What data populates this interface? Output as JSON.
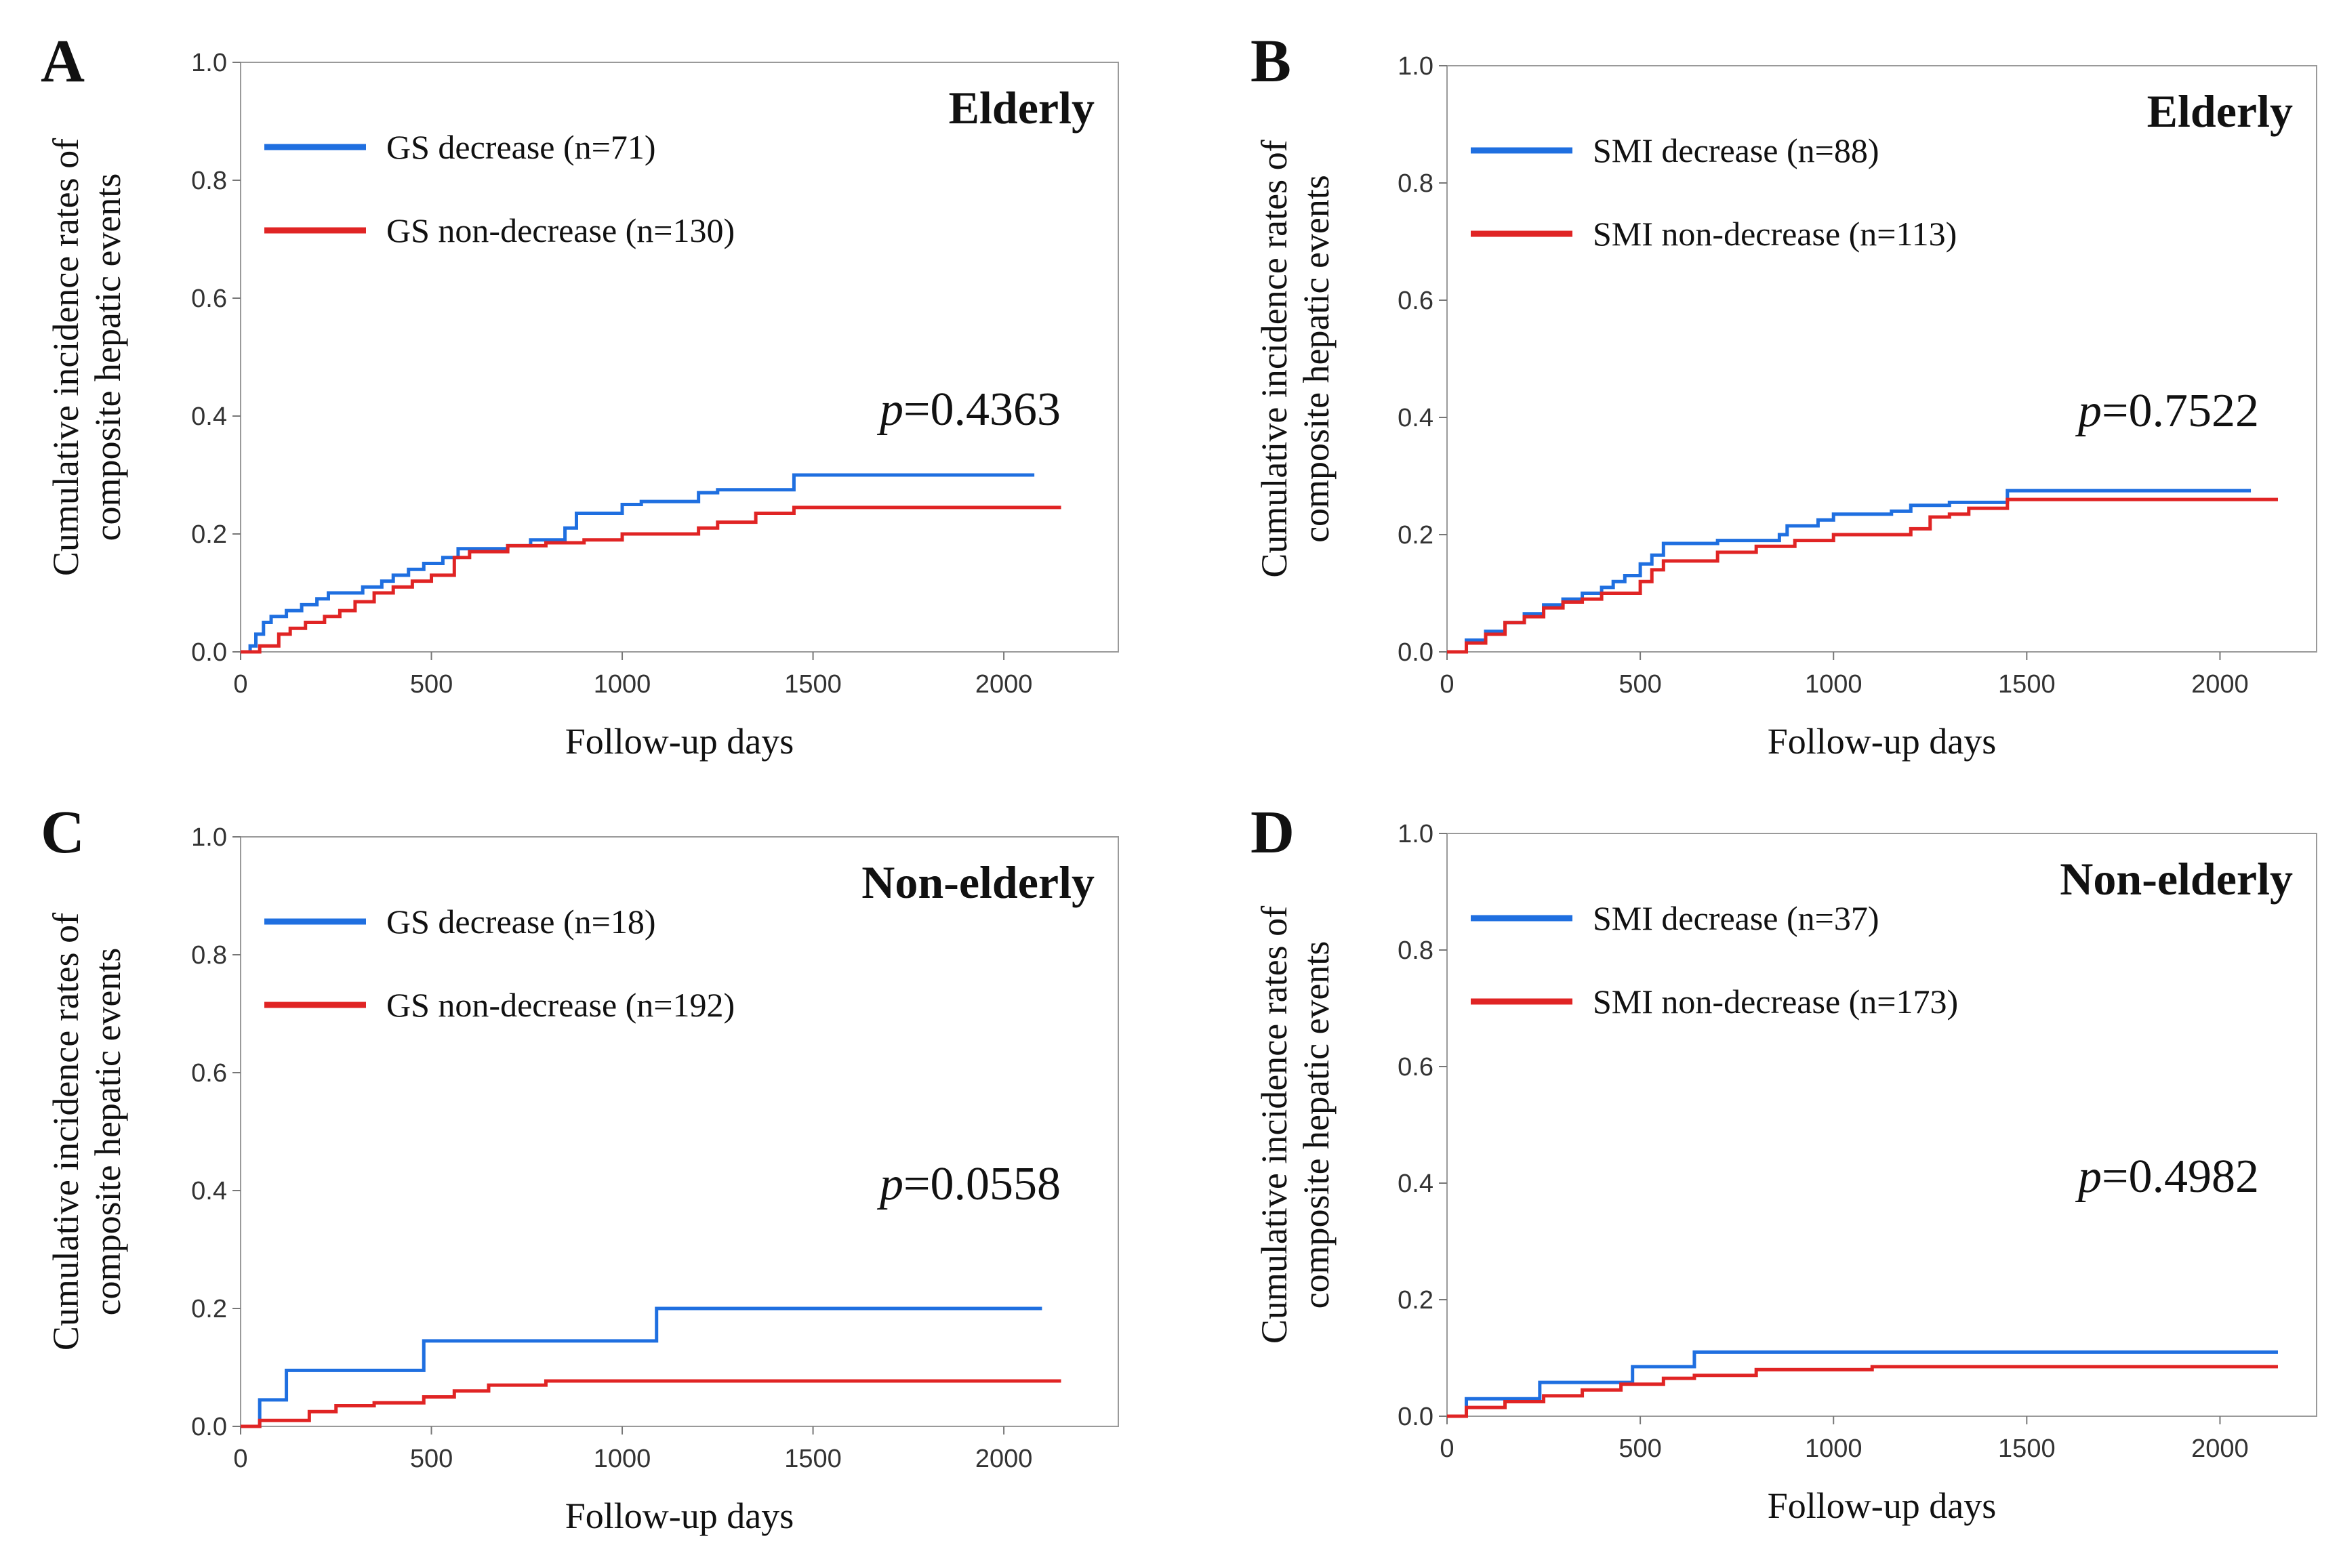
{
  "chart_data": [
    {
      "type": "line",
      "step": true,
      "panel": "A",
      "group": "Elderly",
      "xlabel": "Follow-up days",
      "ylabel": "Cumulative incidence rates of composite hepatic events",
      "ylabel_lines": [
        "Cumulative incidence rates of",
        "composite hepatic events"
      ],
      "xlim": [
        0,
        2300
      ],
      "ylim": [
        0,
        1
      ],
      "xticks": [
        "0",
        "500",
        "1000",
        "1500",
        "2000"
      ],
      "yticks": [
        "0.0",
        "0.2",
        "0.4",
        "0.6",
        "0.8",
        "1.0"
      ],
      "p_prefix": "p",
      "p_value": "=0.4363",
      "legend_position": "top-left",
      "series": [
        {
          "name": "GS decrease (n=71)",
          "color": "#1f6fe0",
          "x": [
            0,
            25,
            40,
            60,
            80,
            120,
            160,
            200,
            230,
            320,
            370,
            400,
            440,
            480,
            530,
            570,
            700,
            760,
            850,
            880,
            1000,
            1050,
            1200,
            1250,
            1450,
            2080
          ],
          "y": [
            0,
            0.01,
            0.03,
            0.05,
            0.06,
            0.07,
            0.08,
            0.09,
            0.1,
            0.11,
            0.12,
            0.13,
            0.14,
            0.15,
            0.16,
            0.175,
            0.18,
            0.19,
            0.21,
            0.235,
            0.25,
            0.255,
            0.27,
            0.275,
            0.3,
            0.3
          ]
        },
        {
          "name": "GS non-decrease (n=130)",
          "color": "#e02424",
          "x": [
            0,
            50,
            100,
            130,
            170,
            220,
            260,
            300,
            350,
            400,
            450,
            500,
            560,
            600,
            700,
            800,
            900,
            1000,
            1200,
            1250,
            1350,
            1450,
            2150
          ],
          "y": [
            0,
            0.01,
            0.03,
            0.04,
            0.05,
            0.06,
            0.07,
            0.085,
            0.1,
            0.11,
            0.12,
            0.13,
            0.16,
            0.17,
            0.18,
            0.185,
            0.19,
            0.2,
            0.21,
            0.22,
            0.235,
            0.245,
            0.245
          ]
        }
      ]
    },
    {
      "type": "line",
      "step": true,
      "panel": "B",
      "group": "Elderly",
      "xlabel": "Follow-up days",
      "ylabel": "Cumulative incidence rates of composite hepatic events",
      "ylabel_lines": [
        "Cumulative incidence rates of",
        "composite hepatic events"
      ],
      "xlim": [
        0,
        2250
      ],
      "ylim": [
        0,
        1
      ],
      "xticks": [
        "0",
        "500",
        "1000",
        "1500",
        "2000"
      ],
      "yticks": [
        "0.0",
        "0.2",
        "0.4",
        "0.6",
        "0.8",
        "1.0"
      ],
      "p_prefix": "p",
      "p_value": "=0.7522",
      "legend_position": "top-left",
      "series": [
        {
          "name": "SMI decrease (n=88)",
          "color": "#1f6fe0",
          "x": [
            0,
            50,
            100,
            150,
            200,
            250,
            300,
            350,
            400,
            430,
            460,
            500,
            530,
            560,
            700,
            860,
            880,
            960,
            1000,
            1150,
            1200,
            1300,
            1450,
            2080
          ],
          "y": [
            0,
            0.02,
            0.035,
            0.05,
            0.065,
            0.08,
            0.09,
            0.1,
            0.11,
            0.12,
            0.13,
            0.15,
            0.165,
            0.185,
            0.19,
            0.2,
            0.215,
            0.225,
            0.235,
            0.24,
            0.25,
            0.255,
            0.275,
            0.275
          ]
        },
        {
          "name": "SMI non-decrease (n=113)",
          "color": "#e02424",
          "x": [
            0,
            50,
            100,
            150,
            200,
            250,
            300,
            350,
            400,
            450,
            500,
            530,
            560,
            700,
            800,
            900,
            1000,
            1200,
            1250,
            1300,
            1350,
            1450,
            2150
          ],
          "y": [
            0,
            0.015,
            0.03,
            0.05,
            0.06,
            0.075,
            0.085,
            0.09,
            0.1,
            0.1,
            0.12,
            0.14,
            0.155,
            0.17,
            0.18,
            0.19,
            0.2,
            0.21,
            0.23,
            0.235,
            0.245,
            0.26,
            0.26
          ]
        }
      ]
    },
    {
      "type": "line",
      "step": true,
      "panel": "C",
      "group": "Non-elderly",
      "xlabel": "Follow-up days",
      "ylabel": "Cumulative incidence rates of composite hepatic events",
      "ylabel_lines": [
        "Cumulative incidence rates of",
        "composite hepatic events"
      ],
      "xlim": [
        0,
        2300
      ],
      "ylim": [
        0,
        1
      ],
      "xticks": [
        "0",
        "500",
        "1000",
        "1500",
        "2000"
      ],
      "yticks": [
        "0.0",
        "0.2",
        "0.4",
        "0.6",
        "0.8",
        "1.0"
      ],
      "p_prefix": "p",
      "p_value": "=0.0558",
      "legend_position": "top-left",
      "series": [
        {
          "name": "GS decrease (n=18)",
          "color": "#1f6fe0",
          "x": [
            0,
            50,
            120,
            480,
            1090,
            2100
          ],
          "y": [
            0,
            0.045,
            0.095,
            0.145,
            0.2,
            0.2
          ]
        },
        {
          "name": "GS non-decrease (n=192)",
          "color": "#e02424",
          "x": [
            0,
            50,
            180,
            250,
            350,
            480,
            560,
            650,
            800,
            2150
          ],
          "y": [
            0,
            0.01,
            0.025,
            0.035,
            0.04,
            0.05,
            0.06,
            0.07,
            0.077,
            0.077
          ]
        }
      ]
    },
    {
      "type": "line",
      "step": true,
      "panel": "D",
      "group": "Non-elderly",
      "xlabel": "Follow-up days",
      "ylabel": "Cumulative incidence rates of composite hepatic events",
      "ylabel_lines": [
        "Cumulative incidence rates of",
        "composite hepatic events"
      ],
      "xlim": [
        0,
        2250
      ],
      "ylim": [
        0,
        1
      ],
      "xticks": [
        "0",
        "500",
        "1000",
        "1500",
        "2000"
      ],
      "yticks": [
        "0.0",
        "0.2",
        "0.4",
        "0.6",
        "0.8",
        "1.0"
      ],
      "p_prefix": "p",
      "p_value": "=0.4982",
      "legend_position": "top-left",
      "series": [
        {
          "name": "SMI decrease (n=37)",
          "color": "#1f6fe0",
          "x": [
            0,
            50,
            240,
            480,
            640,
            2150
          ],
          "y": [
            0,
            0.03,
            0.058,
            0.085,
            0.11,
            0.11
          ]
        },
        {
          "name": "SMI non-decrease (n=173)",
          "color": "#e02424",
          "x": [
            0,
            50,
            150,
            250,
            350,
            450,
            560,
            640,
            800,
            1100,
            2150
          ],
          "y": [
            0,
            0.015,
            0.025,
            0.035,
            0.045,
            0.055,
            0.065,
            0.07,
            0.08,
            0.085,
            0.085
          ]
        }
      ]
    }
  ]
}
